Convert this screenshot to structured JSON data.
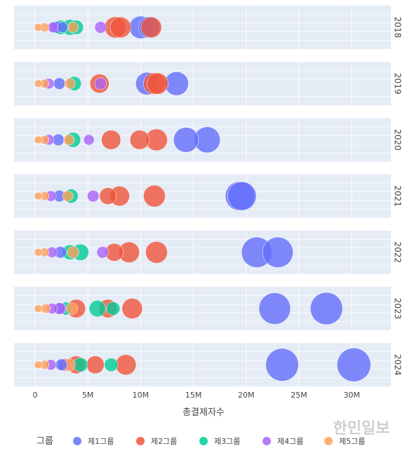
{
  "chart_data": {
    "type": "scatter",
    "xlabel": "총결제자수",
    "legend_title": "그룹",
    "legend_position": "bottom",
    "xlim": [
      -2000000,
      34000000
    ],
    "x_ticks": [
      0,
      5000000,
      10000000,
      15000000,
      20000000,
      25000000,
      30000000
    ],
    "x_tick_labels": [
      "0",
      "5M",
      "10M",
      "15M",
      "20M",
      "25M",
      "30M"
    ],
    "grid": true,
    "panels": [
      "2018",
      "2019",
      "2020",
      "2021",
      "2022",
      "2023",
      "2024"
    ],
    "colors": {
      "제1그룹": "#636efa",
      "제2그룹": "#ef553b",
      "제3그룹": "#00cc96",
      "제4그룹": "#ab63fa",
      "제5그룹": "#ffa15a"
    },
    "series": [
      {
        "name": "제1그룹",
        "points": [
          {
            "panel": "2018",
            "x": 10000000,
            "size": 0.45
          },
          {
            "panel": "2018",
            "x": 10800000,
            "size": 0.4
          },
          {
            "panel": "2018",
            "x": 2000000,
            "size": 0.12
          },
          {
            "panel": "2018",
            "x": 2600000,
            "size": 0.1
          },
          {
            "panel": "2019",
            "x": 10600000,
            "size": 0.45
          },
          {
            "panel": "2019",
            "x": 13400000,
            "size": 0.5
          },
          {
            "panel": "2019",
            "x": 2300000,
            "size": 0.12
          },
          {
            "panel": "2020",
            "x": 14300000,
            "size": 0.55
          },
          {
            "panel": "2020",
            "x": 16300000,
            "size": 0.6
          },
          {
            "panel": "2020",
            "x": 2200000,
            "size": 0.12
          },
          {
            "panel": "2021",
            "x": 19400000,
            "size": 0.75
          },
          {
            "panel": "2021",
            "x": 19600000,
            "size": 0.72
          },
          {
            "panel": "2021",
            "x": 2300000,
            "size": 0.12
          },
          {
            "panel": "2022",
            "x": 21000000,
            "size": 0.82
          },
          {
            "panel": "2022",
            "x": 23000000,
            "size": 0.82
          },
          {
            "panel": "2022",
            "x": 2400000,
            "size": 0.12
          },
          {
            "panel": "2023",
            "x": 22700000,
            "size": 0.88
          },
          {
            "panel": "2023",
            "x": 27600000,
            "size": 0.92
          },
          {
            "panel": "2023",
            "x": 2400000,
            "size": 0.12
          },
          {
            "panel": "2024",
            "x": 23400000,
            "size": 0.95
          },
          {
            "panel": "2024",
            "x": 30200000,
            "size": 1.0
          },
          {
            "panel": "2024",
            "x": 2500000,
            "size": 0.12
          }
        ]
      },
      {
        "name": "제2그룹",
        "points": [
          {
            "panel": "2018",
            "x": 7600000,
            "size": 0.4
          },
          {
            "panel": "2018",
            "x": 8100000,
            "size": 0.38
          },
          {
            "panel": "2018",
            "x": 11000000,
            "size": 0.38
          },
          {
            "panel": "2019",
            "x": 6100000,
            "size": 0.32
          },
          {
            "panel": "2019",
            "x": 11300000,
            "size": 0.42
          },
          {
            "panel": "2019",
            "x": 11600000,
            "size": 0.4
          },
          {
            "panel": "2020",
            "x": 7200000,
            "size": 0.33
          },
          {
            "panel": "2020",
            "x": 9900000,
            "size": 0.33
          },
          {
            "panel": "2020",
            "x": 11500000,
            "size": 0.42
          },
          {
            "panel": "2021",
            "x": 6900000,
            "size": 0.25
          },
          {
            "panel": "2021",
            "x": 8000000,
            "size": 0.35
          },
          {
            "panel": "2021",
            "x": 11300000,
            "size": 0.42
          },
          {
            "panel": "2022",
            "x": 7500000,
            "size": 0.28
          },
          {
            "panel": "2022",
            "x": 8900000,
            "size": 0.38
          },
          {
            "panel": "2022",
            "x": 11500000,
            "size": 0.42
          },
          {
            "panel": "2023",
            "x": 3900000,
            "size": 0.3
          },
          {
            "panel": "2023",
            "x": 6900000,
            "size": 0.3
          },
          {
            "panel": "2023",
            "x": 9200000,
            "size": 0.37
          },
          {
            "panel": "2024",
            "x": 3900000,
            "size": 0.28
          },
          {
            "panel": "2024",
            "x": 5700000,
            "size": 0.28
          },
          {
            "panel": "2024",
            "x": 8600000,
            "size": 0.37
          }
        ]
      },
      {
        "name": "제3그룹",
        "points": [
          {
            "panel": "2018",
            "x": 2400000,
            "size": 0.18
          },
          {
            "panel": "2018",
            "x": 3300000,
            "size": 0.22
          },
          {
            "panel": "2018",
            "x": 3900000,
            "size": 0.18
          },
          {
            "panel": "2019",
            "x": 3700000,
            "size": 0.18
          },
          {
            "panel": "2020",
            "x": 3600000,
            "size": 0.2
          },
          {
            "panel": "2021",
            "x": 3400000,
            "size": 0.18
          },
          {
            "panel": "2022",
            "x": 3300000,
            "size": 0.2
          },
          {
            "panel": "2022",
            "x": 4300000,
            "size": 0.24
          },
          {
            "panel": "2023",
            "x": 2900000,
            "size": 0.15
          },
          {
            "panel": "2023",
            "x": 5900000,
            "size": 0.24
          },
          {
            "panel": "2023",
            "x": 7400000,
            "size": 0.16
          },
          {
            "panel": "2024",
            "x": 4300000,
            "size": 0.18
          },
          {
            "panel": "2024",
            "x": 7200000,
            "size": 0.16
          }
        ]
      },
      {
        "name": "제4그룹",
        "points": [
          {
            "panel": "2018",
            "x": 1700000,
            "size": 0.1
          },
          {
            "panel": "2018",
            "x": 6200000,
            "size": 0.12
          },
          {
            "panel": "2019",
            "x": 1300000,
            "size": 0.1
          },
          {
            "panel": "2019",
            "x": 6200000,
            "size": 0.12
          },
          {
            "panel": "2020",
            "x": 1300000,
            "size": 0.1
          },
          {
            "panel": "2020",
            "x": 5100000,
            "size": 0.1
          },
          {
            "panel": "2021",
            "x": 1500000,
            "size": 0.1
          },
          {
            "panel": "2021",
            "x": 5500000,
            "size": 0.12
          },
          {
            "panel": "2022",
            "x": 1600000,
            "size": 0.1
          },
          {
            "panel": "2022",
            "x": 6400000,
            "size": 0.12
          },
          {
            "panel": "2023",
            "x": 1600000,
            "size": 0.1
          },
          {
            "panel": "2023",
            "x": 2300000,
            "size": 0.12
          },
          {
            "panel": "2024",
            "x": 1500000,
            "size": 0.1
          },
          {
            "panel": "2024",
            "x": 2800000,
            "size": 0.14
          }
        ]
      },
      {
        "name": "제5그룹",
        "points": [
          {
            "panel": "2018",
            "x": 300000,
            "size": 0.05
          },
          {
            "panel": "2018",
            "x": 900000,
            "size": 0.07
          },
          {
            "panel": "2018",
            "x": 3600000,
            "size": 0.1
          },
          {
            "panel": "2019",
            "x": 300000,
            "size": 0.05
          },
          {
            "panel": "2019",
            "x": 900000,
            "size": 0.07
          },
          {
            "panel": "2019",
            "x": 3300000,
            "size": 0.1
          },
          {
            "panel": "2020",
            "x": 300000,
            "size": 0.05
          },
          {
            "panel": "2020",
            "x": 900000,
            "size": 0.07
          },
          {
            "panel": "2020",
            "x": 3200000,
            "size": 0.1
          },
          {
            "panel": "2021",
            "x": 300000,
            "size": 0.05
          },
          {
            "panel": "2021",
            "x": 900000,
            "size": 0.07
          },
          {
            "panel": "2021",
            "x": 3100000,
            "size": 0.1
          },
          {
            "panel": "2022",
            "x": 300000,
            "size": 0.05
          },
          {
            "panel": "2022",
            "x": 900000,
            "size": 0.07
          },
          {
            "panel": "2022",
            "x": 3600000,
            "size": 0.12
          },
          {
            "panel": "2023",
            "x": 300000,
            "size": 0.05
          },
          {
            "panel": "2023",
            "x": 1000000,
            "size": 0.08
          },
          {
            "panel": "2023",
            "x": 3500000,
            "size": 0.12
          },
          {
            "panel": "2024",
            "x": 300000,
            "size": 0.05
          },
          {
            "panel": "2024",
            "x": 900000,
            "size": 0.07
          },
          {
            "panel": "2024",
            "x": 3200000,
            "size": 0.14
          }
        ]
      }
    ]
  },
  "watermark": "한민일보"
}
